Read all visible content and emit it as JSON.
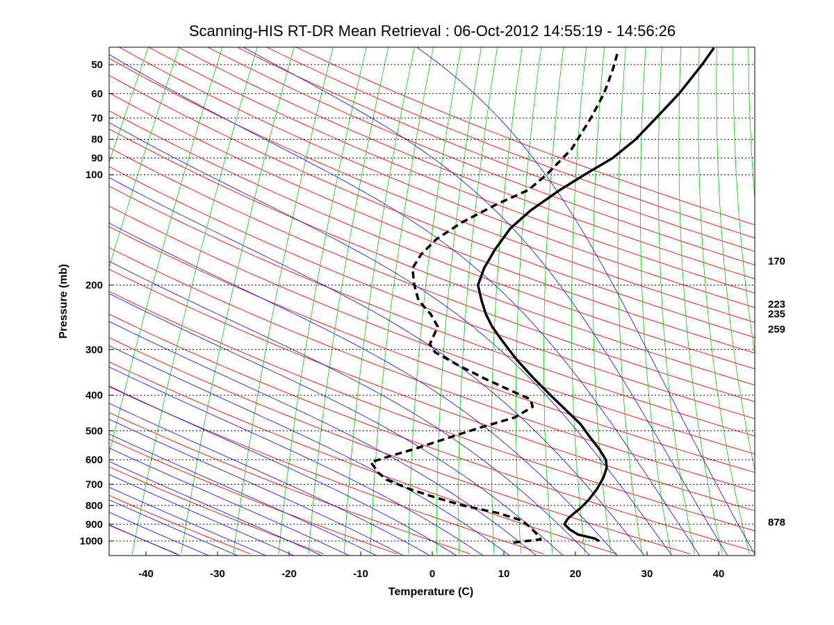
{
  "chart_data": {
    "type": "line",
    "subtype": "skew-T log-P thermodynamic diagram",
    "title": "Scanning-HIS RT-DR Mean Retrieval : 06-Oct-2012 14:55:19 - 14:56:26",
    "xlabel": "Temperature (C)",
    "ylabel": "Pressure (mb)",
    "xlim": [
      -45,
      45
    ],
    "ylim": [
      45,
      1050
    ],
    "x_ticks": [
      -40,
      -30,
      -20,
      -10,
      0,
      10,
      20,
      30,
      40
    ],
    "x_tick_labels": [
      "-40",
      "-30",
      "-20",
      "-10",
      "0",
      "10",
      "20",
      "30",
      "40"
    ],
    "y_ticks": [
      50,
      60,
      70,
      80,
      90,
      100,
      200,
      300,
      400,
      500,
      600,
      700,
      800,
      900,
      1000
    ],
    "y_tick_labels": [
      "50",
      "60",
      "70",
      "80",
      "90",
      "100",
      "200",
      "300",
      "400",
      "500",
      "600",
      "700",
      "800",
      "900",
      "1000"
    ],
    "grid": "horizontal dotted lines at labeled pressures",
    "background_lines": [
      {
        "name": "dry adiabats",
        "color": "#ff0000"
      },
      {
        "name": "moist adiabats",
        "color": "#0000ff"
      },
      {
        "name": "mixing ratio lines",
        "color": "#00cc00"
      }
    ],
    "series": [
      {
        "name": "Temperature",
        "style": "solid",
        "color": "#000000",
        "points": [
          {
            "p": 1000,
            "t": 23.3
          },
          {
            "p": 985,
            "t": 22.5
          },
          {
            "p": 960,
            "t": 19.8
          },
          {
            "p": 930,
            "t": 18.2
          },
          {
            "p": 900,
            "t": 17.0
          },
          {
            "p": 870,
            "t": 17.0
          },
          {
            "p": 840,
            "t": 17.4
          },
          {
            "p": 810,
            "t": 17.9
          },
          {
            "p": 770,
            "t": 18.3
          },
          {
            "p": 720,
            "t": 18.5
          },
          {
            "p": 670,
            "t": 18.4
          },
          {
            "p": 630,
            "t": 18.0
          },
          {
            "p": 600,
            "t": 17.2
          },
          {
            "p": 560,
            "t": 15.3
          },
          {
            "p": 520,
            "t": 13.0
          },
          {
            "p": 480,
            "t": 10.6
          },
          {
            "p": 440,
            "t": 7.4
          },
          {
            "p": 400,
            "t": 3.9
          },
          {
            "p": 360,
            "t": 0.1
          },
          {
            "p": 320,
            "t": -3.9
          },
          {
            "p": 300,
            "t": -5.9
          },
          {
            "p": 280,
            "t": -8.0
          },
          {
            "p": 260,
            "t": -10.2
          },
          {
            "p": 240,
            "t": -12.2
          },
          {
            "p": 220,
            "t": -14.0
          },
          {
            "p": 200,
            "t": -15.8
          },
          {
            "p": 180,
            "t": -16.4
          },
          {
            "p": 160,
            "t": -16.5
          },
          {
            "p": 140,
            "t": -16.2
          },
          {
            "p": 125,
            "t": -14.9
          },
          {
            "p": 110,
            "t": -12.6
          },
          {
            "p": 100,
            "t": -10.5
          },
          {
            "p": 90,
            "t": -8.0
          },
          {
            "p": 80,
            "t": -6.4
          },
          {
            "p": 70,
            "t": -5.4
          },
          {
            "p": 60,
            "t": -4.3
          },
          {
            "p": 50,
            "t": -3.6
          },
          {
            "p": 45,
            "t": -3.4
          }
        ]
      },
      {
        "name": "Dewpoint",
        "style": "dashed",
        "color": "#000000",
        "points": [
          {
            "p": 1010,
            "t": 11.5
          },
          {
            "p": 990,
            "t": 15.0
          },
          {
            "p": 960,
            "t": 14.1
          },
          {
            "p": 920,
            "t": 12.6
          },
          {
            "p": 880,
            "t": 10.8
          },
          {
            "p": 840,
            "t": 6.9
          },
          {
            "p": 800,
            "t": 1.2
          },
          {
            "p": 760,
            "t": -3.4
          },
          {
            "p": 720,
            "t": -7.8
          },
          {
            "p": 680,
            "t": -11.7
          },
          {
            "p": 650,
            "t": -13.5
          },
          {
            "p": 610,
            "t": -15.4
          },
          {
            "p": 590,
            "t": -13.6
          },
          {
            "p": 560,
            "t": -10.4
          },
          {
            "p": 520,
            "t": -6.4
          },
          {
            "p": 490,
            "t": -3.1
          },
          {
            "p": 460,
            "t": 0.8
          },
          {
            "p": 430,
            "t": 2.4
          },
          {
            "p": 410,
            "t": 1.4
          },
          {
            "p": 390,
            "t": -1.8
          },
          {
            "p": 360,
            "t": -6.8
          },
          {
            "p": 330,
            "t": -11.8
          },
          {
            "p": 305,
            "t": -16.0
          },
          {
            "p": 290,
            "t": -17.4
          },
          {
            "p": 275,
            "t": -17.6
          },
          {
            "p": 260,
            "t": -17.8
          },
          {
            "p": 240,
            "t": -19.9
          },
          {
            "p": 220,
            "t": -22.8
          },
          {
            "p": 200,
            "t": -24.7
          },
          {
            "p": 180,
            "t": -26.4
          },
          {
            "p": 165,
            "t": -26.4
          },
          {
            "p": 150,
            "t": -25.6
          },
          {
            "p": 135,
            "t": -23.5
          },
          {
            "p": 120,
            "t": -20.1
          },
          {
            "p": 110,
            "t": -17.0
          },
          {
            "p": 100,
            "t": -15.8
          },
          {
            "p": 85,
            "t": -14.5
          },
          {
            "p": 70,
            "t": -14.5
          },
          {
            "p": 60,
            "t": -14.8
          },
          {
            "p": 52,
            "t": -15.6
          },
          {
            "p": 46,
            "t": -16.5
          }
        ]
      }
    ],
    "annotations": [
      {
        "text": "170",
        "p": 170
      },
      {
        "text": "223",
        "p": 223
      },
      {
        "text": "235",
        "p": 235
      },
      {
        "text": "259",
        "p": 259
      },
      {
        "text": "878",
        "p": 878
      }
    ]
  }
}
